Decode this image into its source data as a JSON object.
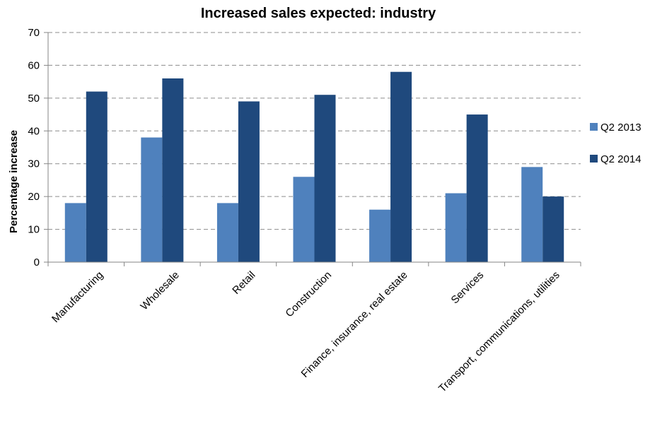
{
  "chart_data": {
    "type": "bar",
    "title": "Increased sales expected: industry",
    "xlabel": "",
    "ylabel": "Percentage increase",
    "ylim": [
      0,
      70
    ],
    "yticks": [
      0,
      10,
      20,
      30,
      40,
      50,
      60,
      70
    ],
    "grid": true,
    "legend_position": "right",
    "categories": [
      "Manufacturing",
      "Wholesale",
      "Retail",
      "Construction",
      "Finance, insurance, real estate",
      "Services",
      "Transport, communications, utilities"
    ],
    "series": [
      {
        "name": "Q2 2013",
        "color": "#4F81BD",
        "values": [
          18,
          38,
          18,
          26,
          16,
          21,
          29
        ]
      },
      {
        "name": "Q2 2014",
        "color": "#1F497D",
        "values": [
          52,
          56,
          49,
          51,
          58,
          45,
          20
        ]
      }
    ]
  }
}
